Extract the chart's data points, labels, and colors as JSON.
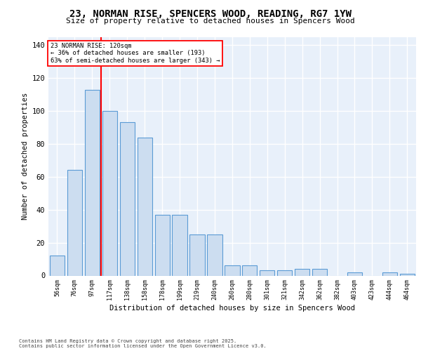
{
  "title_line1": "23, NORMAN RISE, SPENCERS WOOD, READING, RG7 1YW",
  "title_line2": "Size of property relative to detached houses in Spencers Wood",
  "xlabel": "Distribution of detached houses by size in Spencers Wood",
  "ylabel": "Number of detached properties",
  "bar_color": "#ccddf0",
  "bar_edge_color": "#5b9bd5",
  "bg_color": "#e8f0fa",
  "grid_color": "#ffffff",
  "vline_color": "red",
  "annotation_text": "23 NORMAN RISE: 120sqm\n← 36% of detached houses are smaller (193)\n63% of semi-detached houses are larger (343) →",
  "categories": [
    "56sqm",
    "76sqm",
    "97sqm",
    "117sqm",
    "138sqm",
    "158sqm",
    "178sqm",
    "199sqm",
    "219sqm",
    "240sqm",
    "260sqm",
    "280sqm",
    "301sqm",
    "321sqm",
    "342sqm",
    "362sqm",
    "382sqm",
    "403sqm",
    "423sqm",
    "444sqm",
    "464sqm"
  ],
  "values": [
    12,
    64,
    113,
    100,
    93,
    84,
    37,
    37,
    25,
    25,
    6,
    6,
    3,
    3,
    4,
    4,
    0,
    2,
    0,
    2,
    1
  ],
  "ylim": [
    0,
    145
  ],
  "yticks": [
    0,
    20,
    40,
    60,
    80,
    100,
    120,
    140
  ],
  "vline_index": 3,
  "footnote_line1": "Contains HM Land Registry data © Crown copyright and database right 2025.",
  "footnote_line2": "Contains public sector information licensed under the Open Government Licence v3.0."
}
